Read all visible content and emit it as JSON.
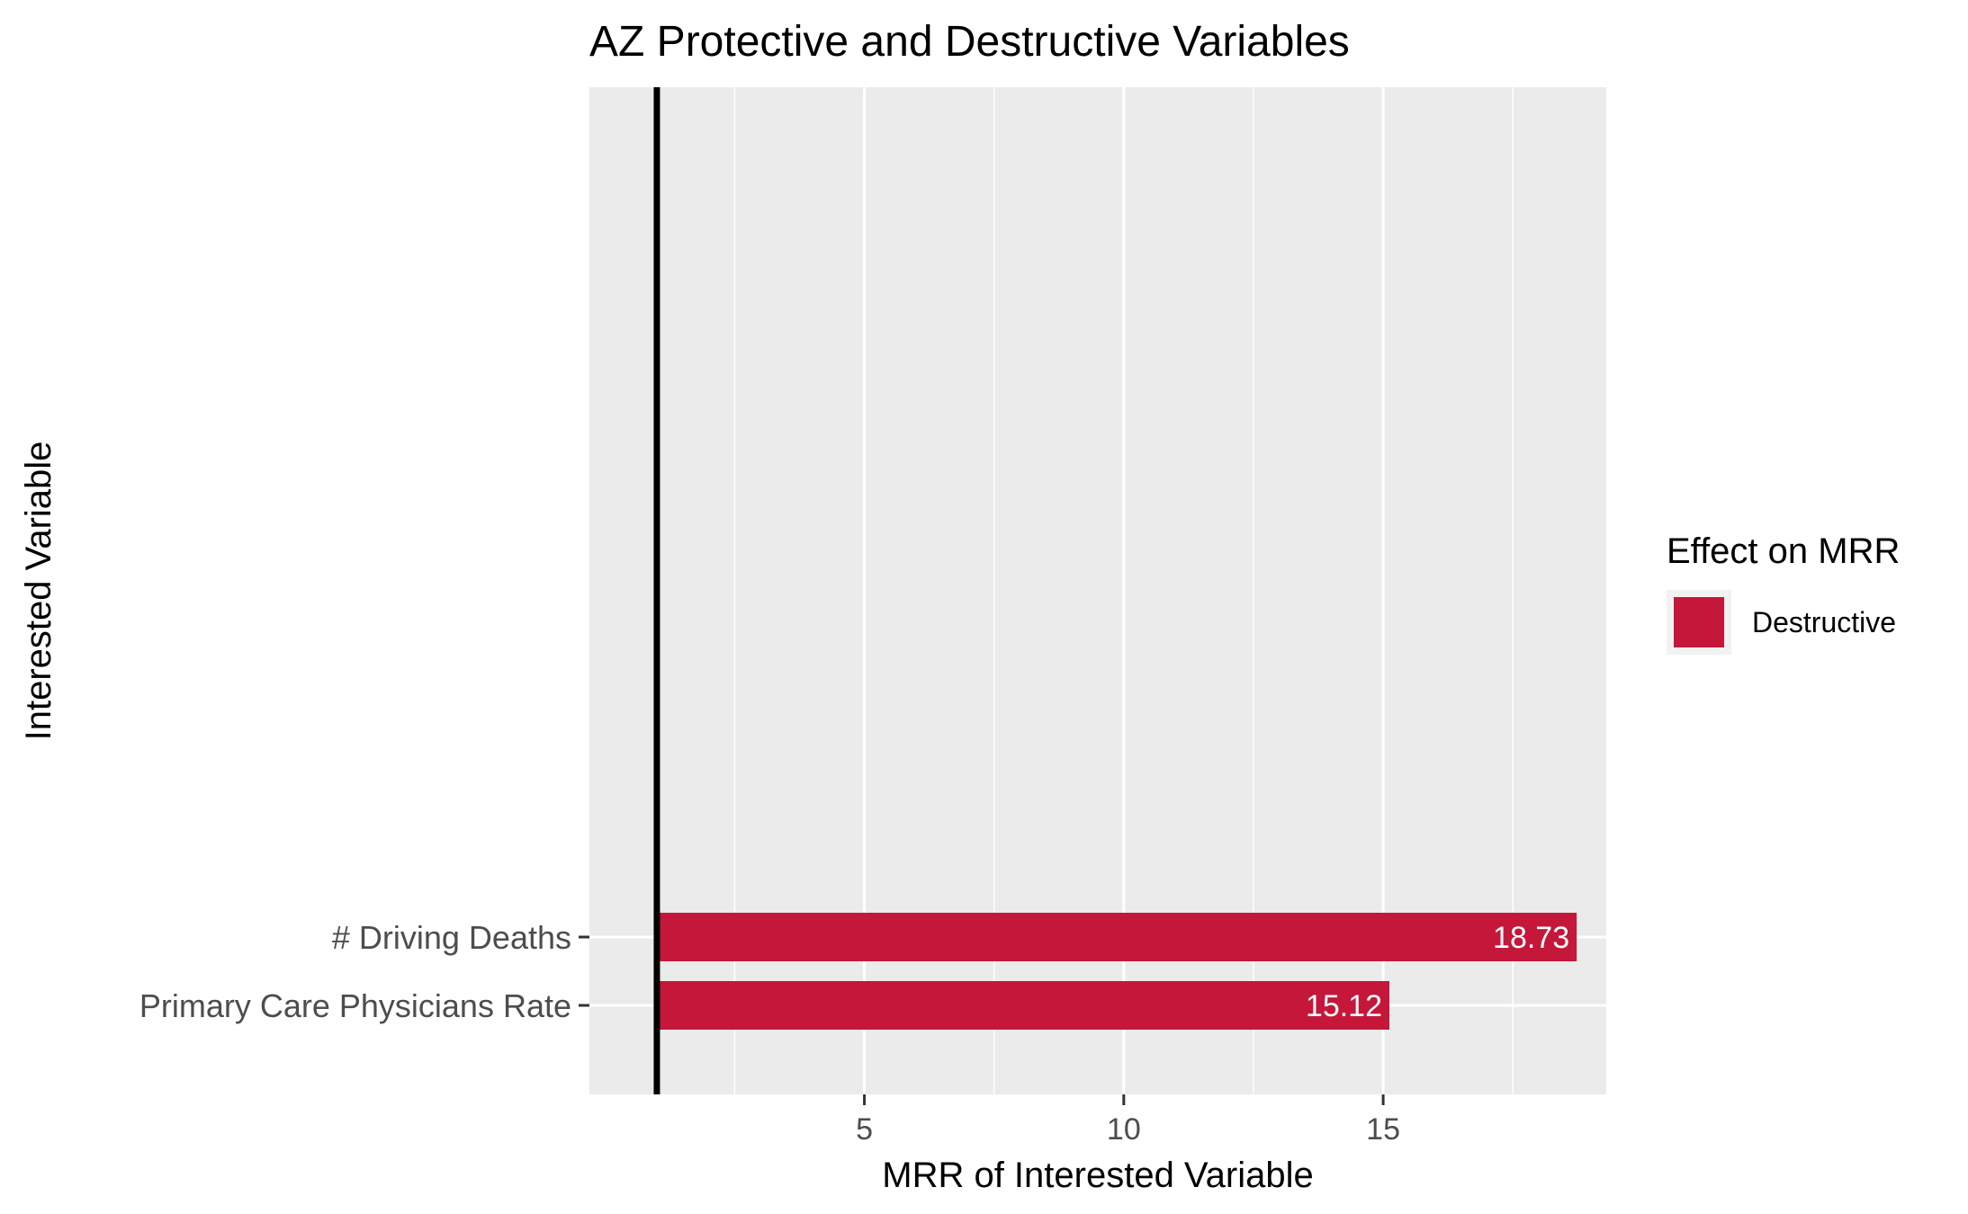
{
  "chart_data": {
    "type": "bar",
    "orientation": "horizontal",
    "title": "AZ Protective and Destructive Variables",
    "xlabel": "MRR of Interested Variable",
    "ylabel": "Interested Variable",
    "categories": [
      "# Driving Deaths",
      "Primary Care Physicians Rate"
    ],
    "series": [
      {
        "name": "Destructive",
        "values": [
          18.73,
          15.12
        ]
      }
    ],
    "data_labels": [
      "18.73",
      "15.12"
    ],
    "x_ticks": [
      5,
      10,
      15
    ],
    "x_tick_labels": [
      "5",
      "10",
      "15"
    ],
    "xlim": [
      -0.3,
      19.3
    ],
    "reference_line_x": 1,
    "bar_start_x": 1,
    "grid": true,
    "legend": {
      "title": "Effect on MRR",
      "entries": [
        "Destructive"
      ],
      "placement": "right"
    },
    "colors": {
      "destructive": "#C4173A",
      "panel_background": "#EBEBEB",
      "gridline": "#FFFFFF",
      "reference_line": "#000000"
    }
  }
}
